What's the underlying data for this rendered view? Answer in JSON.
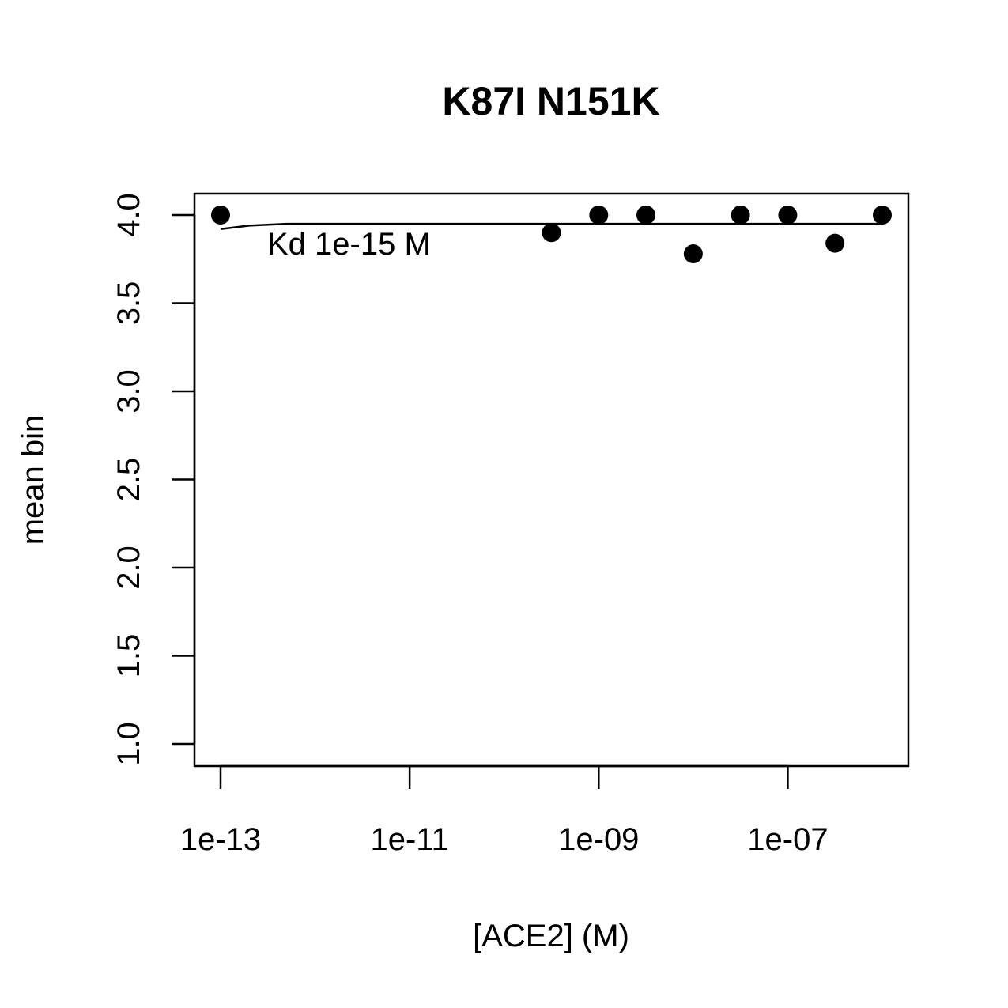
{
  "chart_data": {
    "type": "scatter",
    "title": "K87I N151K",
    "xlabel": "[ACE2] (M)",
    "ylabel": "mean bin",
    "x_scale": "log",
    "xlim": [
      1e-13,
      1e-06
    ],
    "ylim": [
      1.0,
      4.0
    ],
    "x_ticks": [
      1e-13,
      1e-11,
      1e-09,
      1e-07
    ],
    "x_tick_labels": [
      "1e-13",
      "1e-11",
      "1e-09",
      "1e-07"
    ],
    "y_ticks": [
      1.0,
      1.5,
      2.0,
      2.5,
      3.0,
      3.5,
      4.0
    ],
    "y_tick_labels": [
      "1.0",
      "1.5",
      "2.0",
      "2.5",
      "3.0",
      "3.5",
      "4.0"
    ],
    "grid": false,
    "legend": "none",
    "points": [
      {
        "x": 1e-13,
        "y": 4.0
      },
      {
        "x": 3.16e-10,
        "y": 3.9
      },
      {
        "x": 1e-09,
        "y": 4.0
      },
      {
        "x": 3.16e-09,
        "y": 4.0
      },
      {
        "x": 1e-08,
        "y": 3.78
      },
      {
        "x": 3.16e-08,
        "y": 4.0
      },
      {
        "x": 1e-07,
        "y": 4.0
      },
      {
        "x": 3.16e-07,
        "y": 3.84
      },
      {
        "x": 1e-06,
        "y": 4.0
      }
    ],
    "fit_line": {
      "x": [
        1e-13,
        2e-13,
        5e-13,
        1e-12,
        1e-11,
        1e-09,
        1e-07,
        1e-06
      ],
      "y": [
        3.92,
        3.94,
        3.95,
        3.95,
        3.95,
        3.95,
        3.95,
        3.95
      ]
    },
    "annotation": "Kd 1e-15 M",
    "colors": {
      "points": "#000000",
      "line": "#000000",
      "axes": "#000000"
    }
  }
}
